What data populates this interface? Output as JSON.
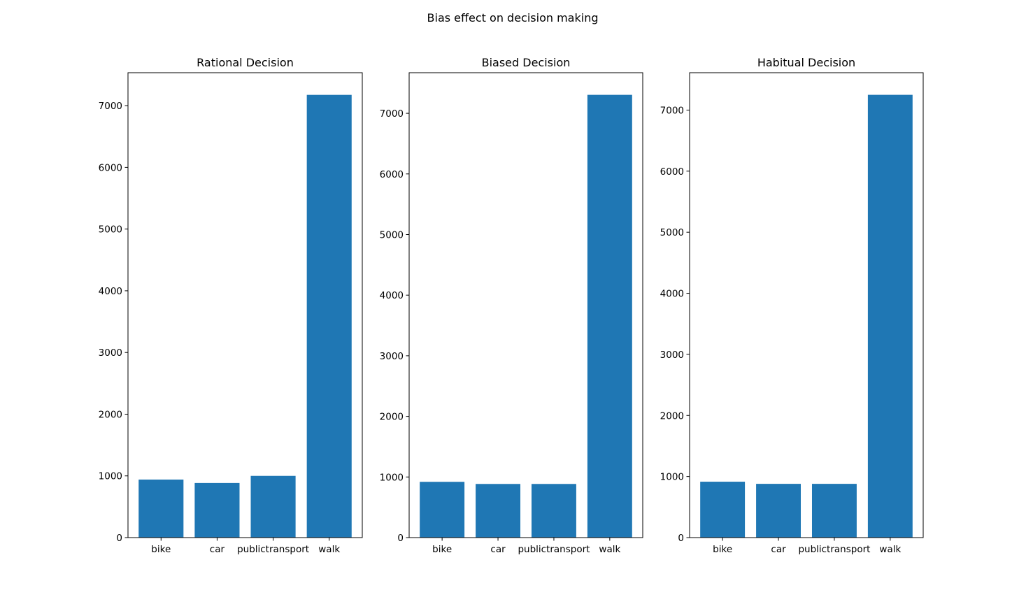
{
  "suptitle": "Bias effect on decision making",
  "bar_color": "#1f77b4",
  "chart_data": [
    {
      "type": "bar",
      "title": "Rational Decision",
      "categories": [
        "bike",
        "car",
        "publictransport",
        "walk"
      ],
      "values": [
        940,
        885,
        1000,
        7175
      ],
      "ylim": [
        0,
        7534
      ],
      "yticks": [
        0,
        1000,
        2000,
        3000,
        4000,
        5000,
        6000,
        7000
      ],
      "grid": false,
      "legend": "none"
    },
    {
      "type": "bar",
      "title": "Biased Decision",
      "categories": [
        "bike",
        "car",
        "publictransport",
        "walk"
      ],
      "values": [
        920,
        885,
        885,
        7305
      ],
      "ylim": [
        0,
        7670
      ],
      "yticks": [
        0,
        1000,
        2000,
        3000,
        4000,
        5000,
        6000,
        7000
      ],
      "grid": false,
      "legend": "none"
    },
    {
      "type": "bar",
      "title": "Habitual Decision",
      "categories": [
        "bike",
        "car",
        "publictransport",
        "walk"
      ],
      "values": [
        915,
        880,
        880,
        7250
      ],
      "ylim": [
        0,
        7612
      ],
      "yticks": [
        0,
        1000,
        2000,
        3000,
        4000,
        5000,
        6000,
        7000
      ],
      "grid": false,
      "legend": "none"
    }
  ]
}
